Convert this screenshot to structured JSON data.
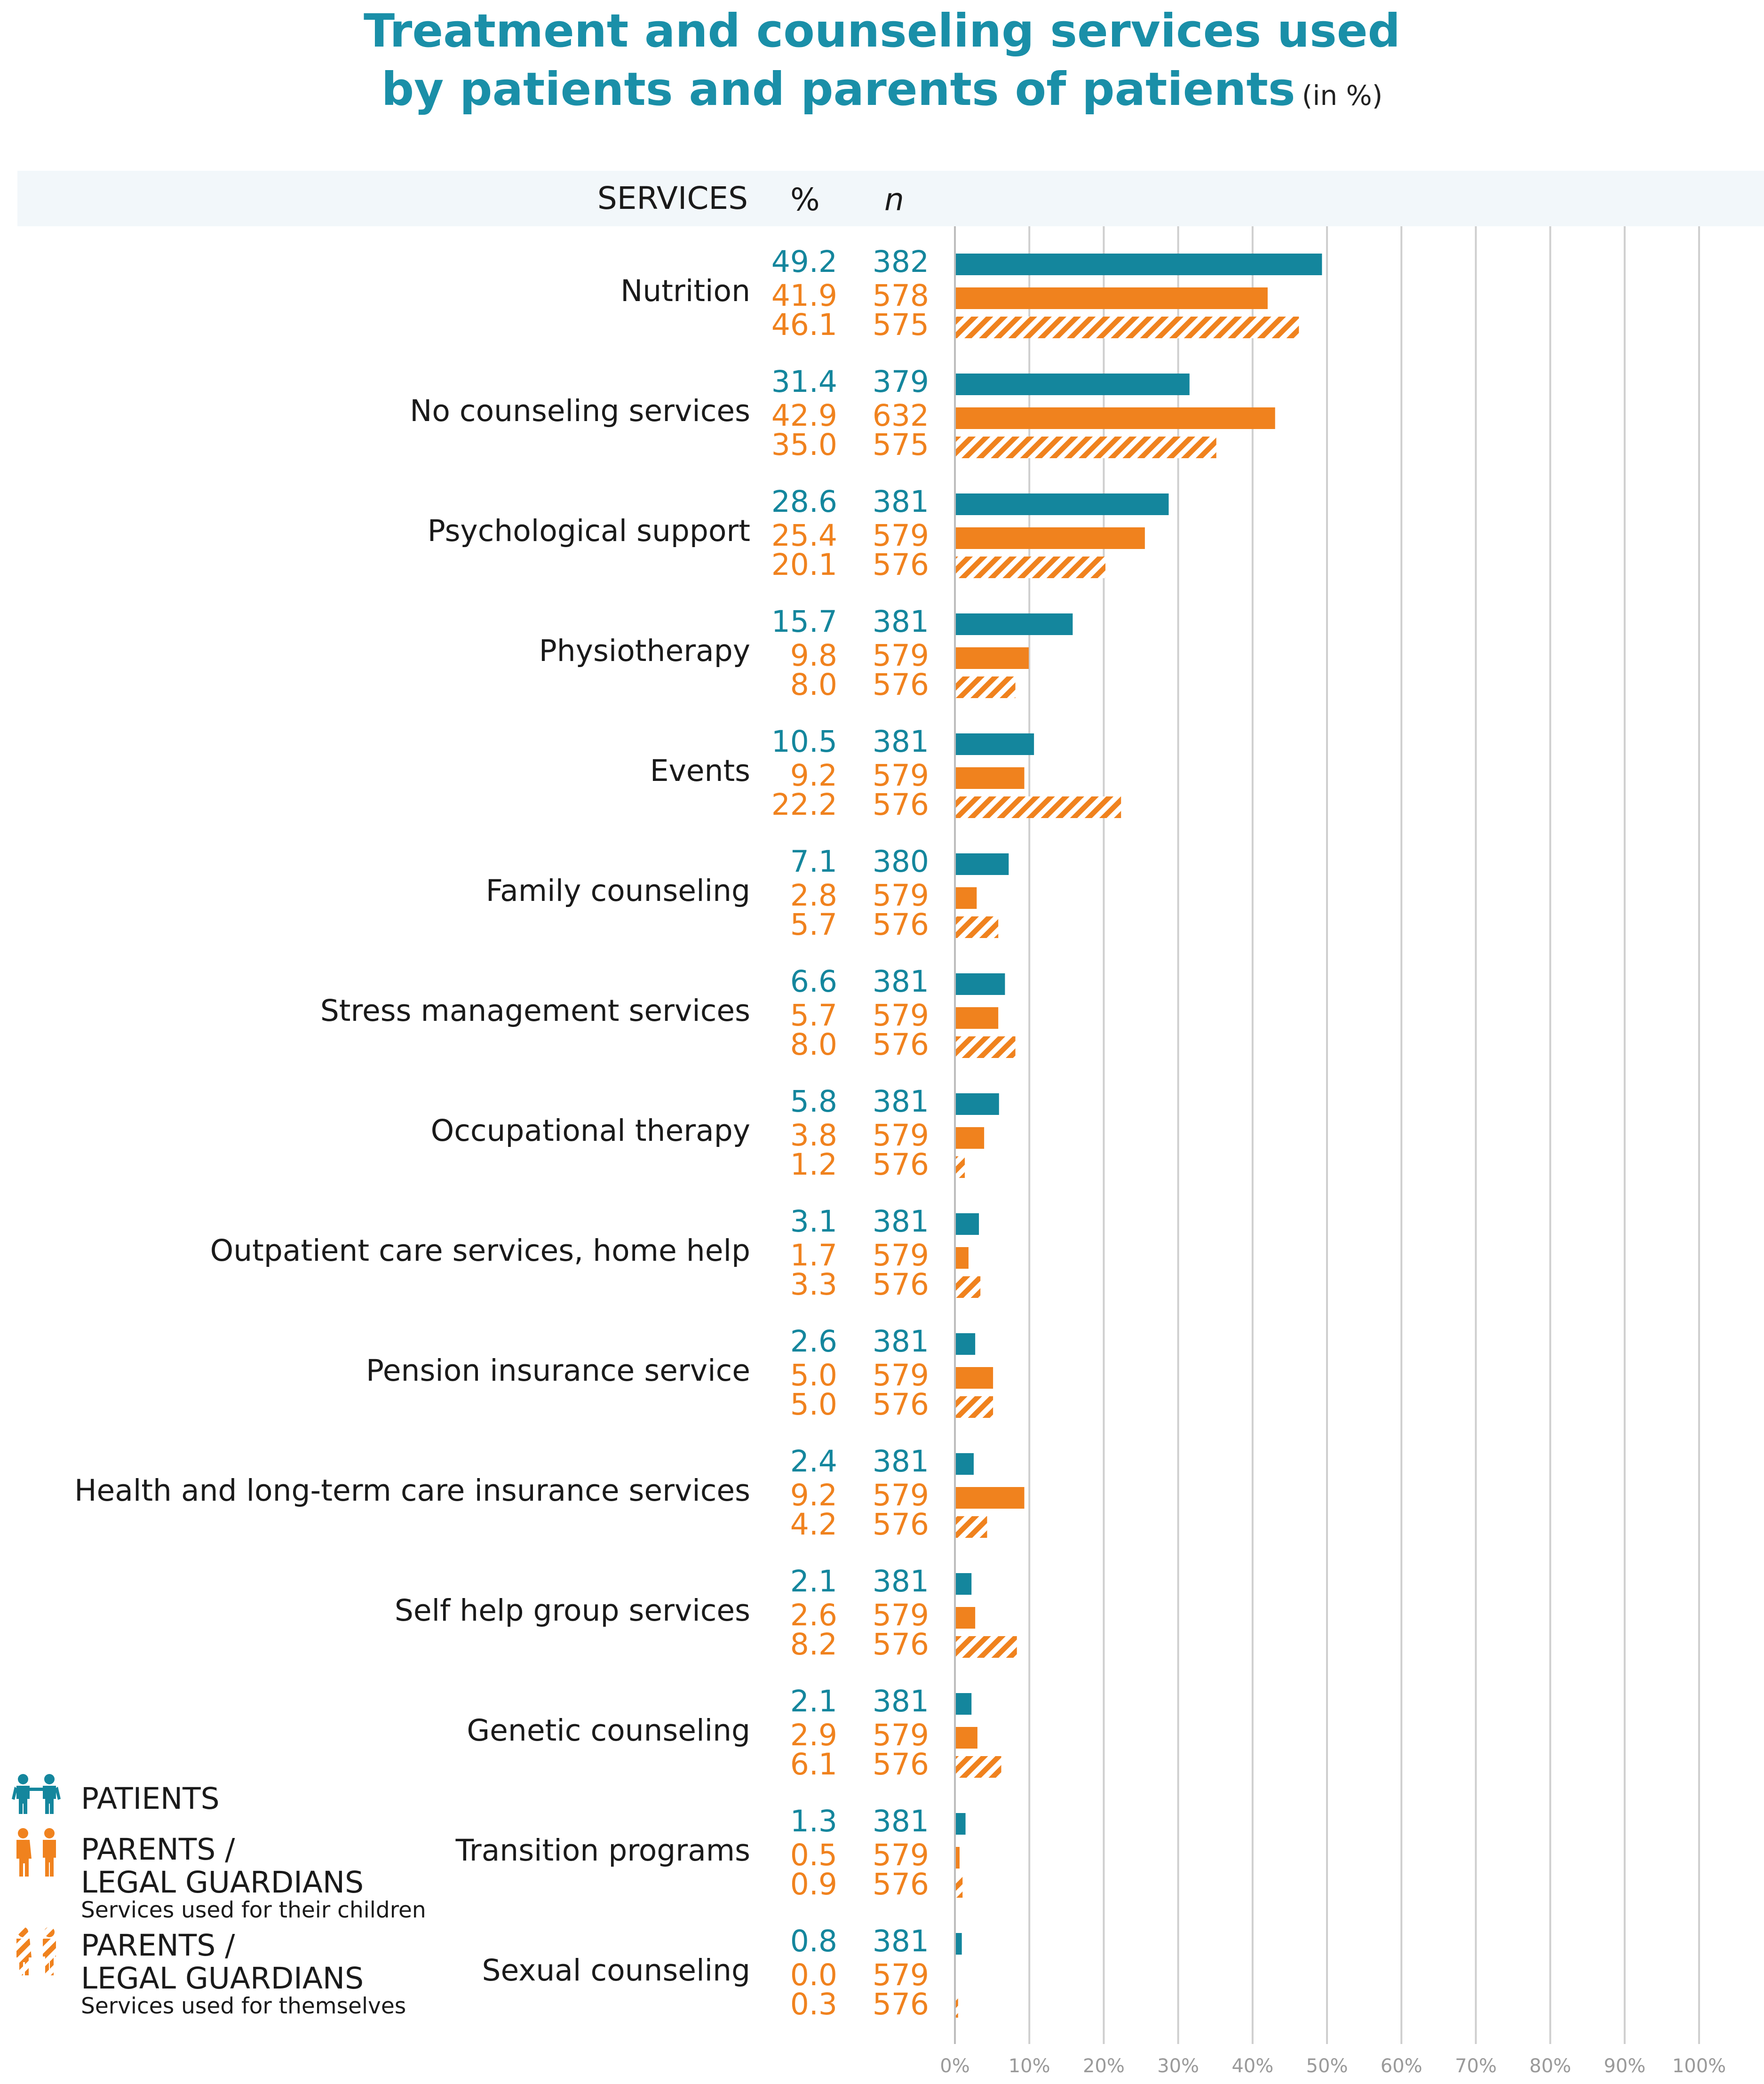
{
  "title": {
    "line1": "Treatment and counseling services used",
    "line2": "by patients and parents of patients",
    "unit": "(in %)"
  },
  "header": {
    "services": "SERVICES",
    "pct": "%",
    "n": "n"
  },
  "colors": {
    "patients": "#14869d",
    "parents_children": "#f0821e",
    "parents_self": "#f0821e",
    "grid": "#cfcfcf",
    "tick": "#9a9a9a"
  },
  "legend": {
    "patients": {
      "label": "PATIENTS",
      "icon": "children-icon"
    },
    "parents_children": {
      "label_line1": "PARENTS /",
      "label_line2": "LEGAL GUARDIANS",
      "sub": "Services used for their children",
      "icon": "parents-icon"
    },
    "parents_self": {
      "label_line1": "PARENTS /",
      "label_line2": "LEGAL GUARDIANS",
      "sub": "Services used for themselves",
      "icon": "parents-hatched-icon"
    }
  },
  "chart_data": {
    "type": "bar",
    "orientation": "horizontal",
    "title": "Treatment and counseling services used by patients and parents of patients (in %)",
    "xlabel": "",
    "ylabel": "SERVICES",
    "xlim": [
      0,
      100
    ],
    "xticks": [
      "0%",
      "10%",
      "20%",
      "30%",
      "40%",
      "50%",
      "60%",
      "70%",
      "80%",
      "90%",
      "100%"
    ],
    "grid": true,
    "categories": [
      "Nutrition",
      "No counseling services",
      "Psychological support",
      "Physiotherapy",
      "Events",
      "Family counseling",
      "Stress management services",
      "Occupational therapy",
      "Outpatient care services, home help",
      "Pension insurance service",
      "Health and long-term care insurance services",
      "Self help group services",
      "Genetic counseling",
      "Transition programs",
      "Sexual counseling"
    ],
    "series": [
      {
        "name": "PATIENTS",
        "style": "solid-teal",
        "values": [
          "49.2",
          "31.4",
          "28.6",
          "15.7",
          "10.5",
          "7.1",
          "6.6",
          "5.8",
          "3.1",
          "2.6",
          "2.4",
          "2.1",
          "2.1",
          "1.3",
          "0.8"
        ],
        "n": [
          "382",
          "379",
          "381",
          "381",
          "381",
          "380",
          "381",
          "381",
          "381",
          "381",
          "381",
          "381",
          "381",
          "381",
          "381"
        ]
      },
      {
        "name": "PARENTS / LEGAL GUARDIANS – Services used for their children",
        "style": "solid-orange",
        "values": [
          "41.9",
          "42.9",
          "25.4",
          "9.8",
          "9.2",
          "2.8",
          "5.7",
          "3.8",
          "1.7",
          "5.0",
          "9.2",
          "2.6",
          "2.9",
          "0.5",
          "0.0"
        ],
        "n": [
          "578",
          "632",
          "579",
          "579",
          "579",
          "579",
          "579",
          "579",
          "579",
          "579",
          "579",
          "579",
          "579",
          "579",
          "579"
        ]
      },
      {
        "name": "PARENTS / LEGAL GUARDIANS – Services used for themselves",
        "style": "hatched-orange",
        "values": [
          "46.1",
          "35.0",
          "20.1",
          "8.0",
          "22.2",
          "5.7",
          "8.0",
          "1.2",
          "3.3",
          "5.0",
          "4.2",
          "8.2",
          "6.1",
          "0.9",
          "0.3"
        ],
        "n": [
          "575",
          "575",
          "576",
          "576",
          "576",
          "576",
          "576",
          "576",
          "576",
          "576",
          "576",
          "576",
          "576",
          "576",
          "576"
        ]
      }
    ]
  }
}
